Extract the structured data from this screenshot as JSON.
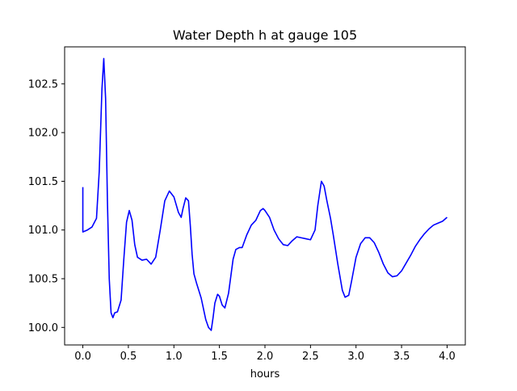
{
  "chart_data": {
    "type": "line",
    "title": "Water Depth h at gauge 105",
    "xlabel": "hours",
    "ylabel": "",
    "xlim": [
      -0.2,
      4.2
    ],
    "ylim": [
      99.82,
      102.88
    ],
    "xticks": [
      0.0,
      0.5,
      1.0,
      1.5,
      2.0,
      2.5,
      3.0,
      3.5,
      4.0
    ],
    "xtick_labels": [
      "0.0",
      "0.5",
      "1.0",
      "1.5",
      "2.0",
      "2.5",
      "3.0",
      "3.5",
      "4.0"
    ],
    "yticks": [
      100.0,
      100.5,
      101.0,
      101.5,
      102.0,
      102.5
    ],
    "ytick_labels": [
      "100.0",
      "100.5",
      "101.0",
      "101.5",
      "102.0",
      "102.5"
    ],
    "grid": false,
    "legend": null,
    "series": [
      {
        "color": "#0000ff",
        "x": [
          0.0,
          0.0,
          0.05,
          0.1,
          0.15,
          0.18,
          0.21,
          0.23,
          0.25,
          0.27,
          0.29,
          0.31,
          0.33,
          0.35,
          0.38,
          0.42,
          0.45,
          0.48,
          0.51,
          0.54,
          0.57,
          0.6,
          0.65,
          0.7,
          0.75,
          0.8,
          0.85,
          0.9,
          0.95,
          1.0,
          1.05,
          1.08,
          1.1,
          1.13,
          1.16,
          1.18,
          1.2,
          1.22,
          1.25,
          1.3,
          1.35,
          1.38,
          1.41,
          1.43,
          1.45,
          1.48,
          1.5,
          1.53,
          1.56,
          1.6,
          1.65,
          1.68,
          1.72,
          1.75,
          1.8,
          1.85,
          1.9,
          1.95,
          1.98,
          2.0,
          2.05,
          2.1,
          2.15,
          2.2,
          2.25,
          2.3,
          2.35,
          2.4,
          2.45,
          2.5,
          2.55,
          2.58,
          2.62,
          2.65,
          2.68,
          2.72,
          2.75,
          2.8,
          2.85,
          2.88,
          2.92,
          2.95,
          3.0,
          3.05,
          3.1,
          3.15,
          3.2,
          3.25,
          3.3,
          3.35,
          3.4,
          3.45,
          3.5,
          3.55,
          3.6,
          3.65,
          3.7,
          3.75,
          3.8,
          3.85,
          3.9,
          3.95,
          4.0
        ],
        "y": [
          101.44,
          100.98,
          101.0,
          101.03,
          101.12,
          101.6,
          102.45,
          102.76,
          102.35,
          101.3,
          100.5,
          100.15,
          100.1,
          100.15,
          100.16,
          100.28,
          100.7,
          101.08,
          101.2,
          101.1,
          100.85,
          100.72,
          100.69,
          100.7,
          100.65,
          100.72,
          101.0,
          101.3,
          101.4,
          101.34,
          101.18,
          101.13,
          101.22,
          101.33,
          101.3,
          101.05,
          100.75,
          100.55,
          100.45,
          100.3,
          100.08,
          100.0,
          99.97,
          100.1,
          100.25,
          100.34,
          100.32,
          100.23,
          100.2,
          100.35,
          100.7,
          100.8,
          100.82,
          100.82,
          100.95,
          101.05,
          101.1,
          101.2,
          101.22,
          101.2,
          101.13,
          101.0,
          100.91,
          100.85,
          100.84,
          100.89,
          100.93,
          100.92,
          100.91,
          100.9,
          101.0,
          101.25,
          101.5,
          101.45,
          101.3,
          101.12,
          100.95,
          100.65,
          100.38,
          100.31,
          100.33,
          100.47,
          100.72,
          100.86,
          100.92,
          100.92,
          100.87,
          100.77,
          100.65,
          100.56,
          100.52,
          100.53,
          100.58,
          100.66,
          100.74,
          100.83,
          100.9,
          100.96,
          101.01,
          101.05,
          101.07,
          101.09,
          101.13
        ]
      }
    ]
  }
}
